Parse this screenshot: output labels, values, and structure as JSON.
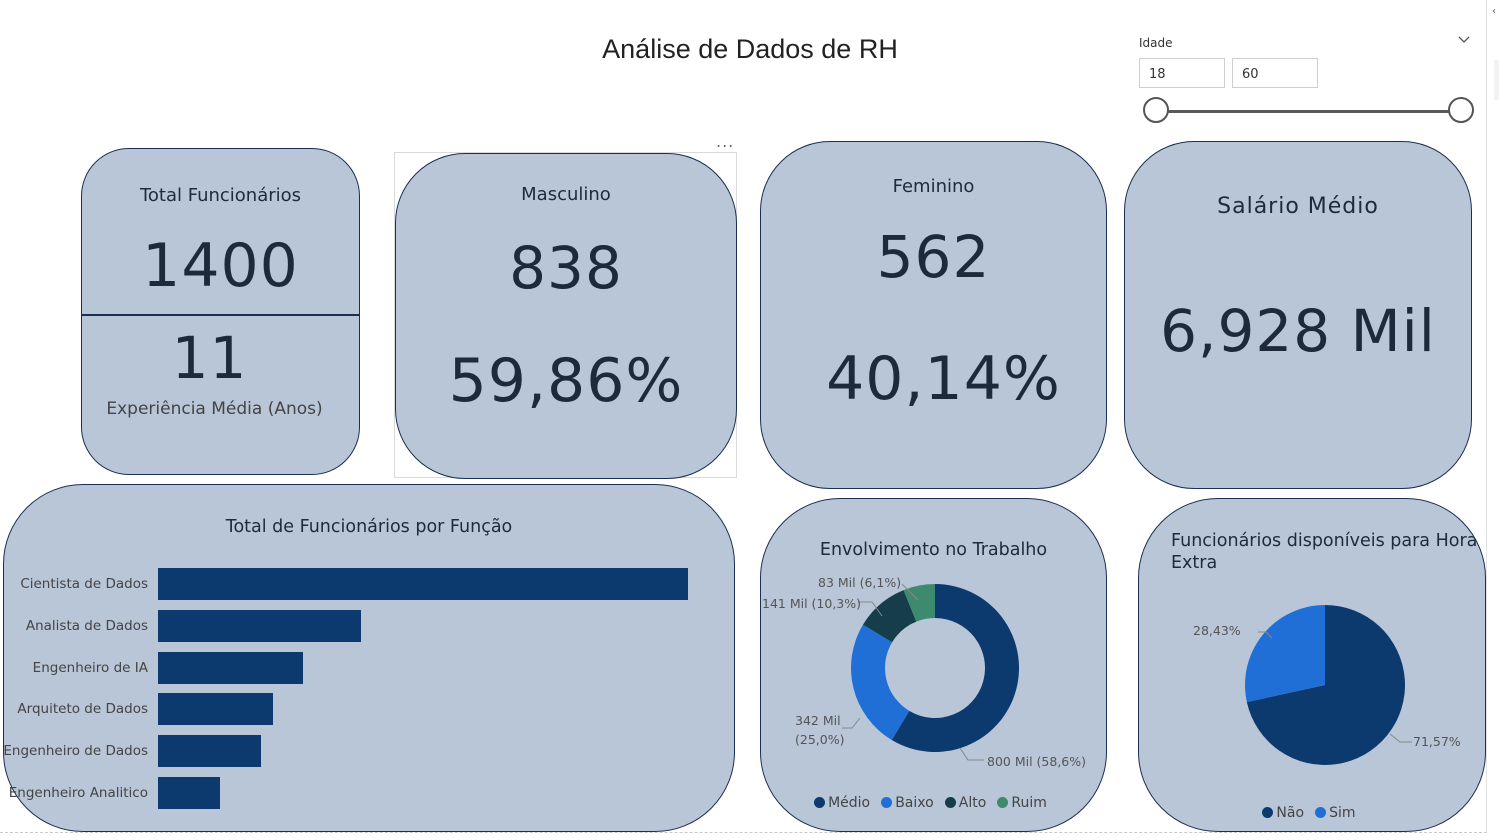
{
  "title": "Análise de Dados de RH",
  "slicer": {
    "title": "Idade",
    "min": "18",
    "max": "60"
  },
  "kpis": {
    "total": {
      "label": "Total Funcionários",
      "value": "1400",
      "sub_value": "11",
      "sub_label": "Experiência Média (Anos)"
    },
    "male": {
      "label": "Masculino",
      "value": "838",
      "pct": "59,86%"
    },
    "female": {
      "label": "Feminino",
      "value": "562",
      "pct": "40,14%"
    },
    "salary": {
      "label": "Salário Médio",
      "value": "6,928 Mil"
    }
  },
  "more_options": "...",
  "chart_data": [
    {
      "type": "bar",
      "title": "Total de Funcionários por Função",
      "orientation": "horizontal",
      "categories": [
        "Cientista de Dados",
        "Analista de Dados",
        "Engenheiro de IA",
        "Arquiteto de Dados",
        "Engenheiro de Dados",
        "Engenheiro Analitico"
      ],
      "values": [
        530,
        203,
        145,
        115,
        103,
        62
      ],
      "color": "#0d3a6e"
    },
    {
      "type": "pie",
      "donut": true,
      "title": "Envolvimento no Trabalho",
      "labels": [
        "Médio",
        "Baixo",
        "Alto",
        "Ruim"
      ],
      "values": [
        800,
        342,
        141,
        83
      ],
      "percent": [
        58.6,
        25.0,
        10.3,
        6.1
      ],
      "colors": [
        "#0d3a6e",
        "#1f6fd6",
        "#153e4a",
        "#3e8a6e"
      ],
      "annotations": [
        "83 Mil (6,1%)",
        "141 Mil (10,3%)",
        "342 Mil",
        "(25,0%)",
        "800 Mil (58,6%)"
      ],
      "legend_position": "bottom"
    },
    {
      "type": "pie",
      "title": "Funcionários disponíveis para Hora Extra",
      "labels": [
        "Não",
        "Sim"
      ],
      "percent": [
        71.57,
        28.43
      ],
      "colors": [
        "#0d3a6e",
        "#1f6fd6"
      ],
      "annotations": [
        "28,43%",
        "71,57%"
      ],
      "legend_position": "bottom"
    }
  ]
}
